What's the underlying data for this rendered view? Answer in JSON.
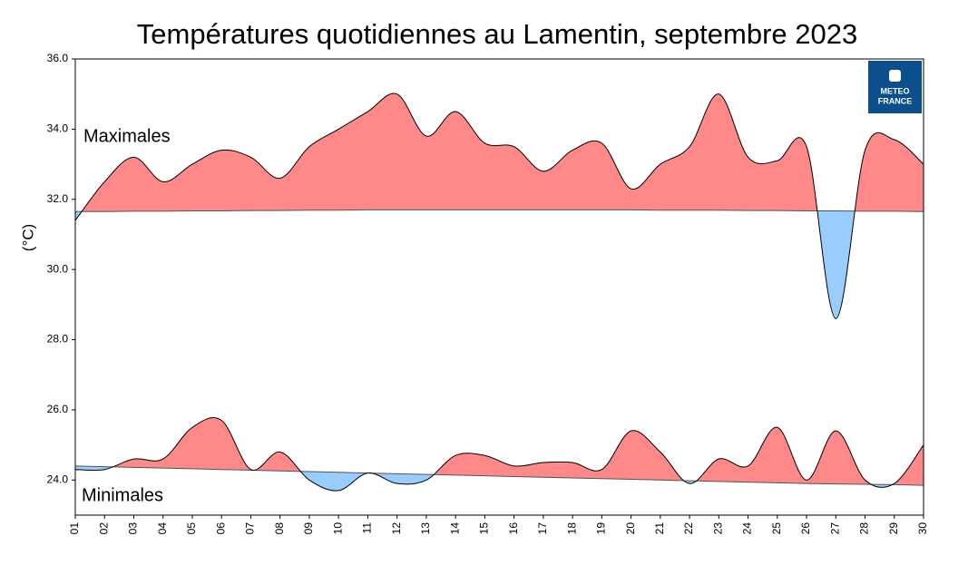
{
  "chart_data": {
    "type": "area",
    "title": "Températures quotidiennes au Lamentin, septembre 2023",
    "ylabel": "(°C)",
    "categories": [
      "01",
      "02",
      "03",
      "04",
      "05",
      "06",
      "07",
      "08",
      "09",
      "10",
      "11",
      "12",
      "13",
      "14",
      "15",
      "16",
      "17",
      "18",
      "19",
      "20",
      "21",
      "22",
      "23",
      "24",
      "25",
      "26",
      "27",
      "28",
      "29",
      "30"
    ],
    "series": [
      {
        "name": "Maximales",
        "values": [
          31.4,
          32.5,
          33.2,
          32.5,
          33.0,
          33.4,
          33.2,
          32.6,
          33.5,
          34.0,
          34.5,
          35.0,
          33.8,
          34.5,
          33.6,
          33.5,
          32.8,
          33.4,
          33.6,
          32.3,
          33.0,
          33.5,
          35.0,
          33.2,
          33.1,
          33.5,
          28.6,
          33.4,
          33.7,
          33.0
        ],
        "normal": [
          31.65,
          31.65,
          31.66,
          31.66,
          31.67,
          31.67,
          31.68,
          31.68,
          31.69,
          31.69,
          31.7,
          31.7,
          31.7,
          31.7,
          31.7,
          31.7,
          31.7,
          31.7,
          31.7,
          31.7,
          31.69,
          31.69,
          31.69,
          31.68,
          31.68,
          31.67,
          31.67,
          31.66,
          31.66,
          31.65
        ]
      },
      {
        "name": "Minimales",
        "values": [
          24.3,
          24.3,
          24.6,
          24.6,
          25.5,
          25.7,
          24.3,
          24.8,
          24.0,
          23.7,
          24.2,
          23.9,
          24.0,
          24.7,
          24.7,
          24.4,
          24.5,
          24.5,
          24.3,
          25.4,
          24.8,
          23.9,
          24.6,
          24.4,
          25.5,
          24.0,
          25.4,
          24.0,
          23.9,
          25.0
        ],
        "normal": [
          24.4,
          24.38,
          24.36,
          24.34,
          24.32,
          24.3,
          24.28,
          24.26,
          24.24,
          24.22,
          24.2,
          24.18,
          24.16,
          24.14,
          24.12,
          24.1,
          24.08,
          24.06,
          24.04,
          24.02,
          24.0,
          23.98,
          23.96,
          23.94,
          23.92,
          23.9,
          23.89,
          23.88,
          23.87,
          23.85
        ]
      }
    ],
    "above_color": "#ff8888",
    "below_color": "#99ccff",
    "ylim": [
      23,
      36
    ],
    "yticks": [
      {
        "value": 24,
        "label": "24.0"
      },
      {
        "value": 26,
        "label": "26.0"
      },
      {
        "value": 28,
        "label": "28.0"
      },
      {
        "value": 30,
        "label": "30.0"
      },
      {
        "value": 32,
        "label": "32.0"
      },
      {
        "value": 34,
        "label": "34.0"
      },
      {
        "value": 36,
        "label": "36.0"
      }
    ],
    "logo": {
      "line1": "METEO",
      "line2": "FRANCE"
    }
  }
}
